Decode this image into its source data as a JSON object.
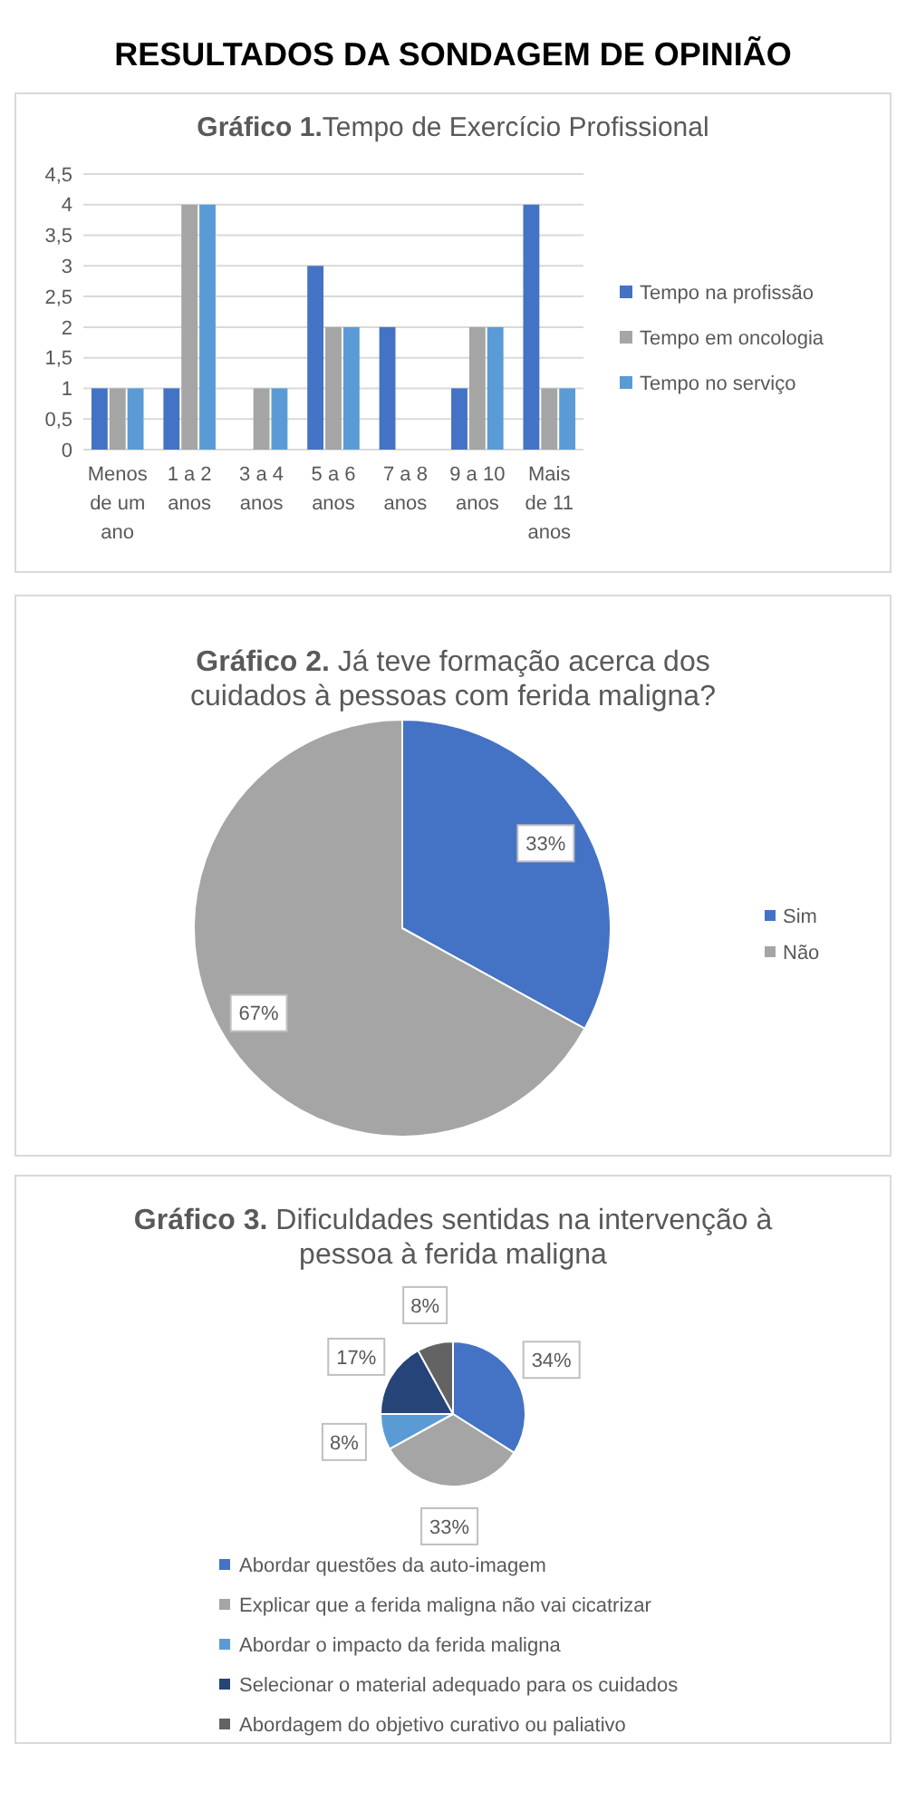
{
  "chart_data": [
    {
      "type": "bar",
      "title": "Gráfico 1.Tempo de Exercício Profissional",
      "annotations": [
        "RESULTADOS DA SONDAGEM DE OPINIÃO"
      ],
      "categories": [
        "Menos de um ano",
        "1 a 2 anos",
        "3 a 4 anos",
        "5 a 6 anos",
        "7 a 8 anos",
        "9 a 10 anos",
        "Mais de 11 anos"
      ],
      "series": [
        {
          "name": "Tempo na profissão",
          "color": "#4472c4",
          "values": [
            1,
            1,
            0,
            3,
            2,
            1,
            4
          ]
        },
        {
          "name": "Tempo em oncologia",
          "color": "#a5a5a5",
          "values": [
            1,
            4,
            1,
            2,
            0,
            2,
            1
          ]
        },
        {
          "name": "Tempo no serviço",
          "color": "#5b9bd5",
          "values": [
            1,
            4,
            1,
            2,
            0,
            2,
            1
          ]
        }
      ],
      "ylim": [
        0,
        4.5
      ],
      "yticks": [
        {
          "value": 0,
          "label": "0"
        },
        {
          "value": 0.5,
          "label": "0,5"
        },
        {
          "value": 1,
          "label": "1"
        },
        {
          "value": 1.5,
          "label": "1,5"
        },
        {
          "value": 2,
          "label": "2"
        },
        {
          "value": 2.5,
          "label": "2,5"
        },
        {
          "value": 3,
          "label": "3"
        },
        {
          "value": 3.5,
          "label": "3,5"
        },
        {
          "value": 4,
          "label": "4"
        },
        {
          "value": 4.5,
          "label": "4,5"
        }
      ],
      "grid": "y",
      "legend": "right"
    },
    {
      "type": "pie",
      "title": "Gráfico 2. Já teve formação acerca dos cuidados à pessoas com ferida maligna?",
      "categories": [
        "Sim",
        "Não"
      ],
      "values": [
        33,
        67
      ],
      "colors": [
        "#4472c4",
        "#a5a5a5"
      ],
      "value_labels": [
        "33%",
        "67%"
      ],
      "legend": "right"
    },
    {
      "type": "pie",
      "title": "Gráfico 3. Dificuldades sentidas na intervenção à pessoa à ferida maligna",
      "categories": [
        "Abordar questões da auto-imagem",
        "Explicar que a ferida maligna não vai cicatrizar",
        "Abordar o impacto da ferida maligna",
        "Selecionar o material adequado para os cuidados",
        "Abordagem do objetivo curativo ou paliativo"
      ],
      "values": [
        34,
        33,
        8,
        17,
        8
      ],
      "colors": [
        "#4472c4",
        "#a5a5a5",
        "#5b9bd5",
        "#264478",
        "#636363"
      ],
      "value_labels": [
        "34%",
        "33%",
        "8%",
        "17%",
        "8%"
      ],
      "legend": "bottom"
    }
  ]
}
